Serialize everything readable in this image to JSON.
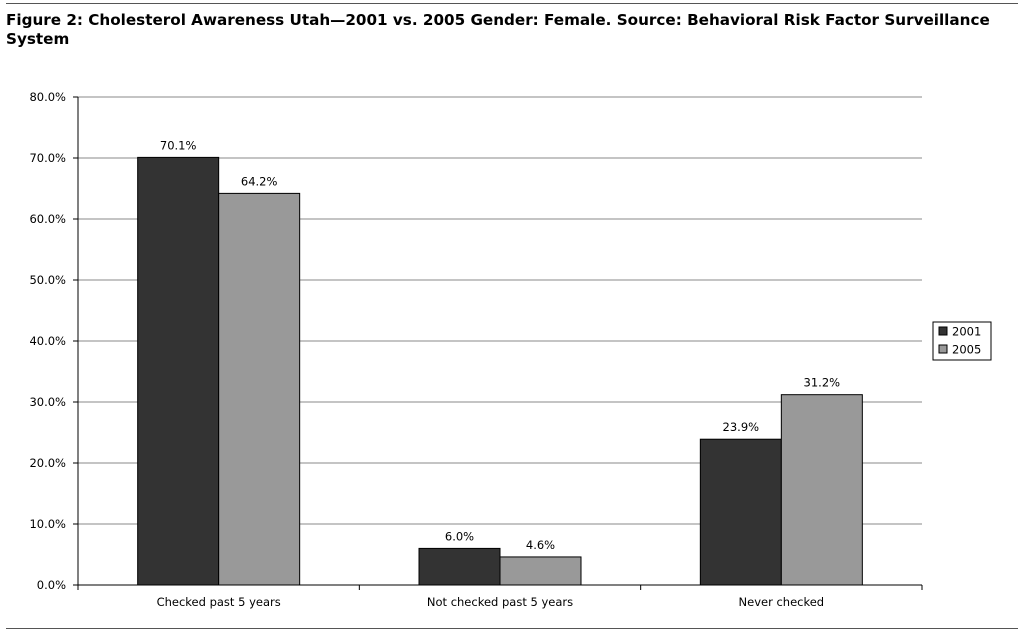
{
  "figure": {
    "title": "Figure 2: Cholesterol Awareness Utah—2001 vs. 2005 Gender: Female. Source: Behavioral Risk Factor Surveillance System"
  },
  "chart_data": {
    "type": "bar",
    "title": "Figure 2: Cholesterol Awareness Utah—2001 vs. 2005 Gender: Female. Source: Behavioral Risk Factor Surveillance System",
    "categories": [
      "Checked past 5 years",
      "Not checked past 5 years",
      "Never checked"
    ],
    "series": [
      {
        "name": "2001",
        "values": [
          70.1,
          6.0,
          23.9
        ],
        "labels": [
          "70.1%",
          "6.0%",
          "23.9%"
        ],
        "color": "#333333"
      },
      {
        "name": "2005",
        "values": [
          64.2,
          4.6,
          31.2
        ],
        "labels": [
          "64.2%",
          "4.6%",
          "31.2%"
        ],
        "color": "#999999"
      }
    ],
    "yticks": [
      0,
      10,
      20,
      30,
      40,
      50,
      60,
      70,
      80
    ],
    "ytick_labels": [
      "0.0%",
      "10.0%",
      "20.0%",
      "30.0%",
      "40.0%",
      "50.0%",
      "60.0%",
      "70.0%",
      "80.0%"
    ],
    "ylim": [
      0,
      80
    ],
    "xlabel": "",
    "ylabel": "",
    "grid": true,
    "legend_position": "right"
  }
}
